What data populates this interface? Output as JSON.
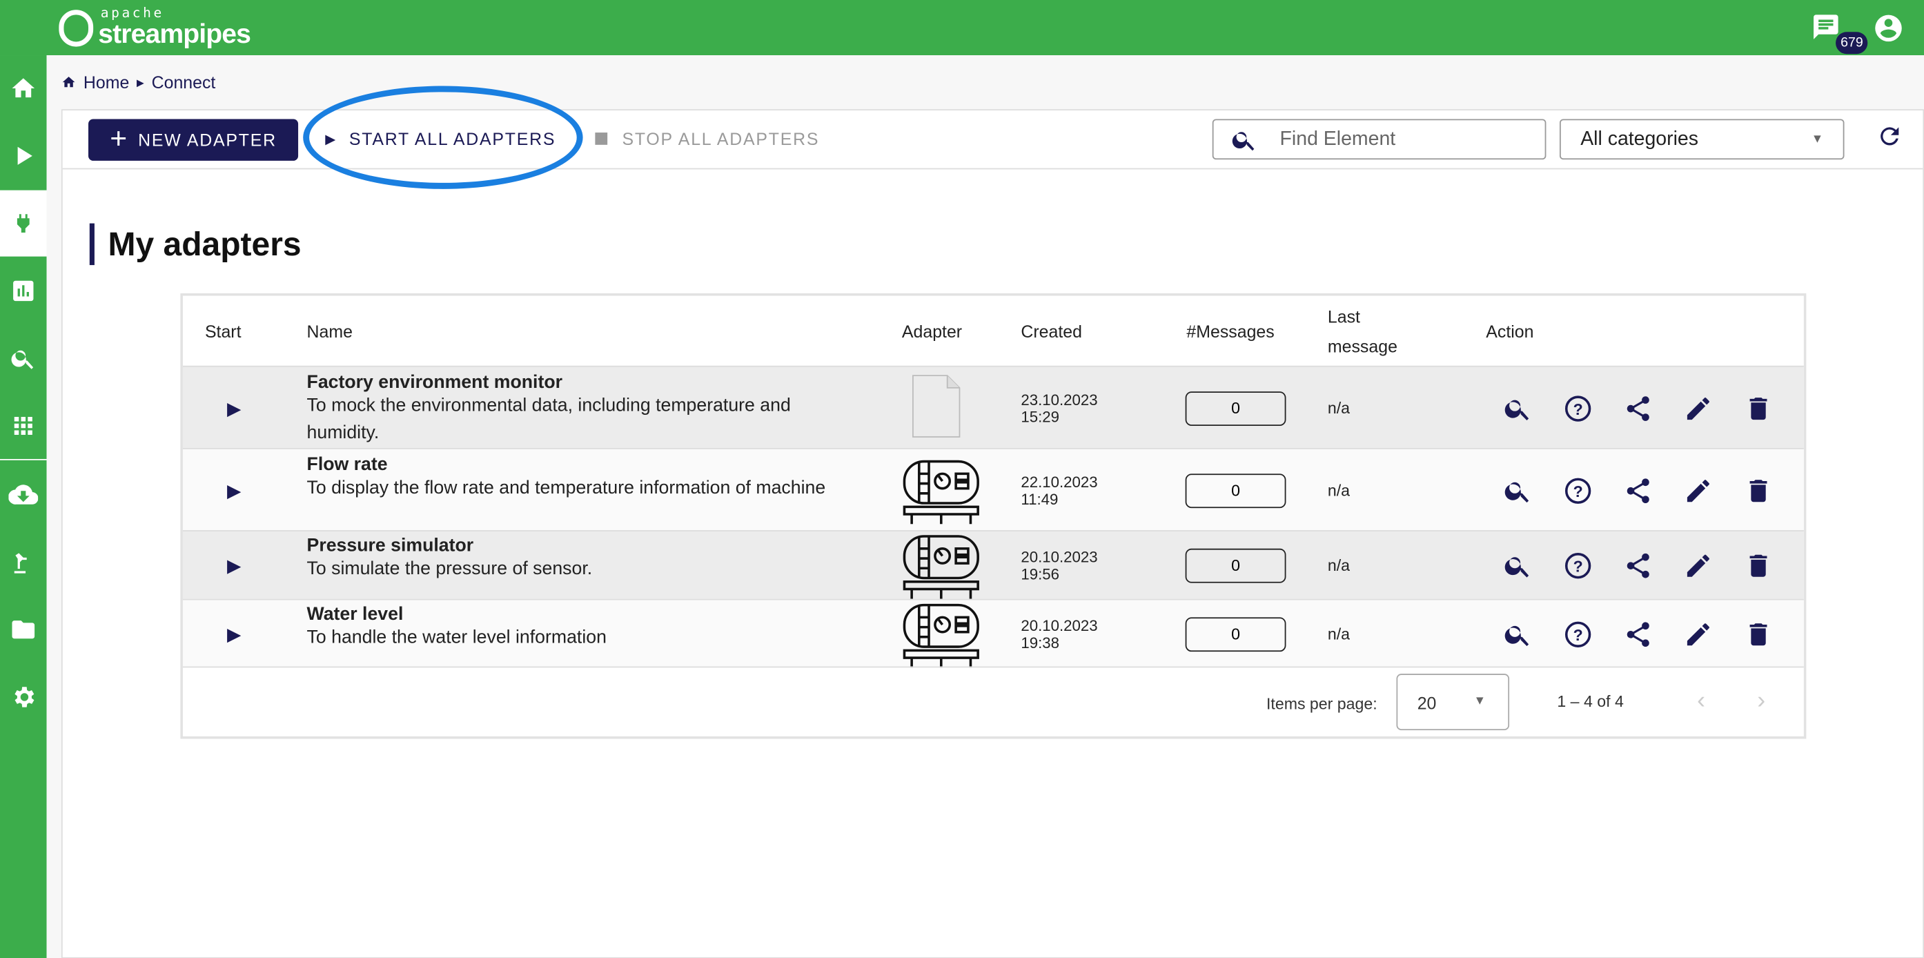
{
  "app": {
    "logo_small": "apache",
    "logo_name": "streampipes",
    "notification_count": "679"
  },
  "colors": {
    "brand_green": "#3cad4b",
    "primary_navy": "#1b1a55",
    "highlight_ellipse": "#1a7fe0"
  },
  "sidebar": {
    "items": [
      {
        "icon": "home-icon"
      },
      {
        "icon": "play-icon"
      },
      {
        "icon": "plug-icon",
        "active": true
      },
      {
        "icon": "chart-icon"
      },
      {
        "icon": "search-icon"
      },
      {
        "icon": "apps-icon"
      },
      {
        "icon": "cloud-download-icon"
      },
      {
        "icon": "robot-arm-icon"
      },
      {
        "icon": "folder-icon"
      },
      {
        "icon": "settings-icon"
      }
    ]
  },
  "breadcrumb": {
    "home": "Home",
    "current": "Connect"
  },
  "toolbar": {
    "new_adapter": "NEW ADAPTER",
    "start_all": "START ALL ADAPTERS",
    "stop_all": "STOP ALL ADAPTERS",
    "search_placeholder": "Find Element",
    "category": "All categories"
  },
  "page_title": "My adapters",
  "table": {
    "headers": {
      "start": "Start",
      "name": "Name",
      "adapter": "Adapter",
      "created": "Created",
      "messages": "#Messages",
      "last_message": "Last message",
      "action": "Action"
    },
    "rows": [
      {
        "name": "Factory environment monitor",
        "description": "To mock the environmental data, including temperature and humidity.",
        "adapter_icon": "file-icon",
        "created_date": "23.10.2023",
        "created_time": "15:29",
        "messages": "0",
        "last_message": "n/a"
      },
      {
        "name": "Flow rate",
        "description": "To display the flow rate and temperature information of machine",
        "adapter_icon": "tank-machine-icon",
        "created_date": "22.10.2023",
        "created_time": "11:49",
        "messages": "0",
        "last_message": "n/a"
      },
      {
        "name": "Pressure simulator",
        "description": "To simulate the pressure of sensor.",
        "adapter_icon": "tank-machine-icon",
        "created_date": "20.10.2023",
        "created_time": "19:56",
        "messages": "0",
        "last_message": "n/a"
      },
      {
        "name": "Water level",
        "description": "To handle the water level information",
        "adapter_icon": "tank-machine-icon",
        "created_date": "20.10.2023",
        "created_time": "19:38",
        "messages": "0",
        "last_message": "n/a"
      }
    ]
  },
  "pagination": {
    "items_per_page_label": "Items per page:",
    "items_per_page": "20",
    "range": "1 – 4 of 4"
  }
}
